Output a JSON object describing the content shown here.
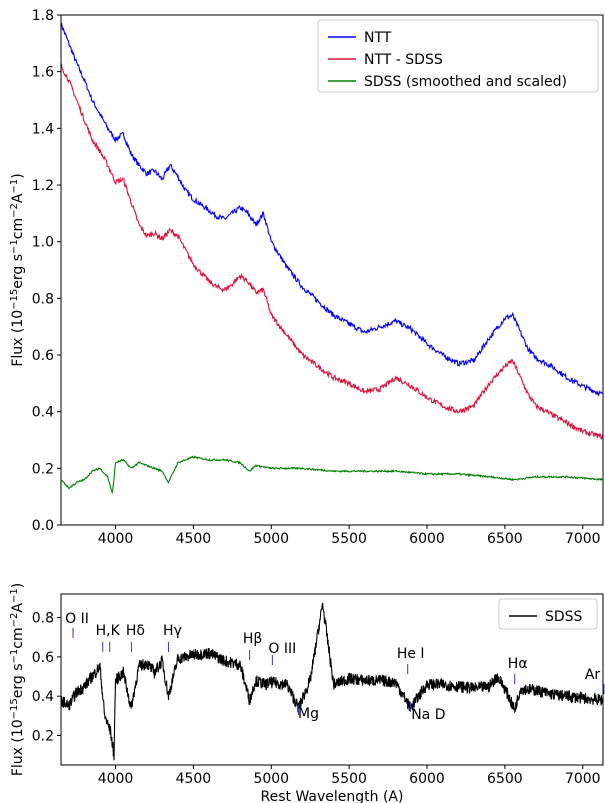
{
  "chart_data": [
    {
      "type": "line",
      "xlabel": "",
      "ylabel": "Flux (10$^{-15}$erg s$^{-1}$cm$^{-2}$A$^{-1}$)",
      "xlim": [
        3650,
        7130
      ],
      "ylim": [
        0.0,
        1.8
      ],
      "xticks": [
        4000,
        4500,
        5000,
        5500,
        6000,
        6500,
        7000
      ],
      "yticks": [
        0.0,
        0.2,
        0.4,
        0.6,
        0.8,
        1.0,
        1.2,
        1.4,
        1.6,
        1.8
      ],
      "legend_position": "top-right",
      "grid": false,
      "series": [
        {
          "name": "NTT",
          "color": "#0000ff",
          "x": [
            3650,
            3700,
            3750,
            3800,
            3850,
            3900,
            3950,
            4000,
            4050,
            4100,
            4150,
            4200,
            4250,
            4300,
            4350,
            4400,
            4450,
            4500,
            4550,
            4600,
            4650,
            4700,
            4750,
            4800,
            4850,
            4900,
            4950,
            5000,
            5100,
            5200,
            5300,
            5400,
            5500,
            5600,
            5700,
            5800,
            5900,
            6000,
            6100,
            6200,
            6300,
            6400,
            6500,
            6550,
            6600,
            6650,
            6700,
            6800,
            6900,
            7000,
            7130
          ],
          "y": [
            1.77,
            1.7,
            1.63,
            1.57,
            1.5,
            1.45,
            1.4,
            1.36,
            1.38,
            1.31,
            1.27,
            1.24,
            1.25,
            1.22,
            1.27,
            1.23,
            1.18,
            1.15,
            1.13,
            1.11,
            1.09,
            1.08,
            1.1,
            1.12,
            1.1,
            1.06,
            1.1,
            1.0,
            0.91,
            0.84,
            0.79,
            0.74,
            0.71,
            0.68,
            0.7,
            0.72,
            0.69,
            0.64,
            0.6,
            0.57,
            0.58,
            0.66,
            0.73,
            0.74,
            0.68,
            0.62,
            0.59,
            0.56,
            0.52,
            0.49,
            0.46
          ]
        },
        {
          "name": "NTT - SDSS",
          "color": "#dc143c",
          "x": [
            3650,
            3700,
            3750,
            3800,
            3850,
            3900,
            3950,
            4000,
            4050,
            4100,
            4150,
            4200,
            4250,
            4300,
            4350,
            4400,
            4450,
            4500,
            4550,
            4600,
            4650,
            4700,
            4750,
            4800,
            4850,
            4900,
            4950,
            5000,
            5100,
            5200,
            5300,
            5400,
            5500,
            5600,
            5700,
            5800,
            5900,
            6000,
            6100,
            6200,
            6300,
            6400,
            6500,
            6550,
            6600,
            6650,
            6700,
            6800,
            6900,
            7000,
            7130
          ],
          "y": [
            1.62,
            1.57,
            1.5,
            1.43,
            1.36,
            1.32,
            1.27,
            1.21,
            1.22,
            1.14,
            1.06,
            1.02,
            1.03,
            1.01,
            1.04,
            1.02,
            0.97,
            0.92,
            0.89,
            0.86,
            0.84,
            0.83,
            0.85,
            0.88,
            0.86,
            0.82,
            0.83,
            0.74,
            0.67,
            0.6,
            0.56,
            0.52,
            0.5,
            0.47,
            0.48,
            0.52,
            0.49,
            0.45,
            0.42,
            0.4,
            0.42,
            0.5,
            0.56,
            0.58,
            0.52,
            0.46,
            0.42,
            0.39,
            0.36,
            0.33,
            0.31
          ]
        },
        {
          "name": "SDSS (smoothed and scaled)",
          "color": "#008000",
          "x": [
            3650,
            3700,
            3750,
            3800,
            3850,
            3900,
            3950,
            3980,
            4000,
            4050,
            4100,
            4150,
            4200,
            4250,
            4300,
            4340,
            4400,
            4500,
            4600,
            4700,
            4800,
            4861,
            4900,
            5000,
            5200,
            5400,
            5600,
            5800,
            6000,
            6200,
            6400,
            6563,
            6700,
            6900,
            7130
          ],
          "y": [
            0.16,
            0.13,
            0.15,
            0.16,
            0.19,
            0.2,
            0.17,
            0.11,
            0.22,
            0.23,
            0.2,
            0.22,
            0.21,
            0.2,
            0.19,
            0.15,
            0.22,
            0.24,
            0.23,
            0.23,
            0.22,
            0.19,
            0.21,
            0.2,
            0.2,
            0.19,
            0.19,
            0.19,
            0.18,
            0.18,
            0.17,
            0.16,
            0.17,
            0.17,
            0.16
          ]
        }
      ]
    },
    {
      "type": "line",
      "xlabel": "Rest Wavelength (A)",
      "ylabel": "Flux (10$^{-15}$erg s$^{-1}$cm$^{-2}$A$^{-1}$)",
      "xlim": [
        3650,
        7130
      ],
      "ylim": [
        0.05,
        0.92
      ],
      "xticks": [
        4000,
        4500,
        5000,
        5500,
        6000,
        6500,
        7000
      ],
      "yticks": [
        0.2,
        0.4,
        0.6,
        0.8
      ],
      "legend_position": "top-right",
      "grid": false,
      "series": [
        {
          "name": "SDSS",
          "color": "#000000",
          "x": [
            3650,
            3700,
            3750,
            3800,
            3850,
            3900,
            3930,
            3968,
            3990,
            4000,
            4050,
            4100,
            4150,
            4200,
            4250,
            4300,
            4340,
            4400,
            4500,
            4600,
            4700,
            4800,
            4861,
            4900,
            4960,
            5000,
            5100,
            5175,
            5250,
            5330,
            5400,
            5500,
            5600,
            5700,
            5800,
            5893,
            6000,
            6100,
            6200,
            6300,
            6400,
            6450,
            6500,
            6563,
            6600,
            6700,
            6800,
            6900,
            7000,
            7130
          ],
          "y": [
            0.38,
            0.35,
            0.42,
            0.45,
            0.5,
            0.55,
            0.3,
            0.22,
            0.1,
            0.48,
            0.52,
            0.34,
            0.55,
            0.57,
            0.52,
            0.58,
            0.4,
            0.59,
            0.61,
            0.62,
            0.58,
            0.56,
            0.38,
            0.48,
            0.46,
            0.47,
            0.46,
            0.34,
            0.48,
            0.87,
            0.46,
            0.49,
            0.48,
            0.48,
            0.47,
            0.34,
            0.46,
            0.46,
            0.45,
            0.44,
            0.45,
            0.5,
            0.44,
            0.33,
            0.44,
            0.43,
            0.41,
            0.4,
            0.39,
            0.38
          ]
        }
      ],
      "annotations": [
        {
          "label": "O II",
          "x": 3727
        },
        {
          "label": "H,K",
          "x": 3950
        },
        {
          "label": "Hδ",
          "x": 4102
        },
        {
          "label": "Hγ",
          "x": 4340
        },
        {
          "label": "Hβ",
          "x": 4861
        },
        {
          "label": "O III",
          "x": 5007
        },
        {
          "label": "Mg",
          "x": 5175
        },
        {
          "label": "He I",
          "x": 5876
        },
        {
          "label": "Na D",
          "x": 5893
        },
        {
          "label": "Hα",
          "x": 6563
        },
        {
          "label": "Ar III",
          "x": 7136
        }
      ]
    }
  ]
}
